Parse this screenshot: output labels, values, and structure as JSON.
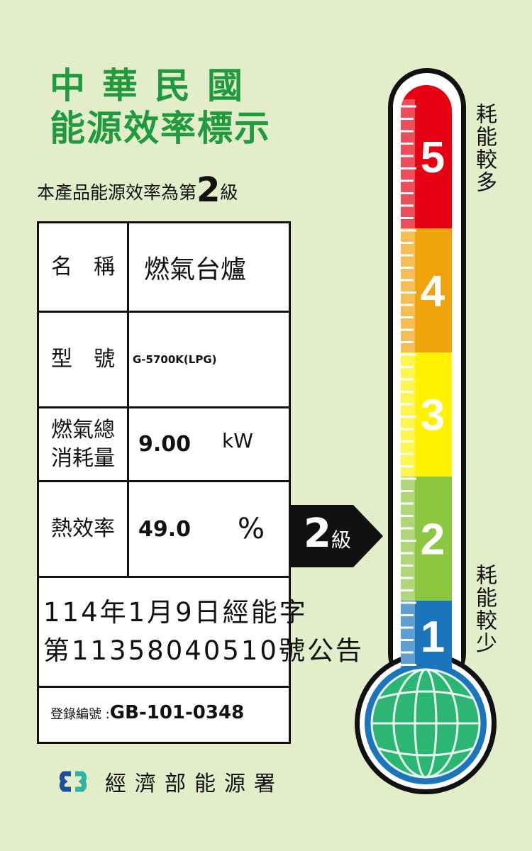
{
  "title": {
    "line1": "中華民國",
    "line2": "能源效率標示"
  },
  "subtitle": {
    "prefix": "本產品能源效率為第",
    "grade": "2",
    "suffix": "級"
  },
  "table": {
    "name_label": "名　稱",
    "name_value": "燃氣台爐",
    "model_label": "型　號",
    "model_value": "G-5700K(LPG)",
    "gas_label_1": "燃氣總",
    "gas_label_2": "消耗量",
    "gas_value": "9.00",
    "gas_unit": "kW",
    "eff_label": "熱效率",
    "eff_value": "49.0",
    "eff_unit": "%",
    "notice_line1": "114年1月9日經能字",
    "notice_line2": "第11358040510號公告",
    "reg_label": "登錄編號 :",
    "reg_value": "GB-101-0348"
  },
  "pointer": {
    "grade": "2",
    "unit": "級"
  },
  "thermometer": {
    "levels": [
      {
        "label": "5",
        "color": "#e60012"
      },
      {
        "label": "4",
        "color": "#f0a30a"
      },
      {
        "label": "3",
        "color": "#fff100"
      },
      {
        "label": "2",
        "color": "#8dc63f"
      },
      {
        "label": "1",
        "color": "#1b75bc"
      }
    ],
    "current_level": 2,
    "top_text": "耗能較多",
    "bottom_text": "耗能較少"
  },
  "footer": {
    "agency": "經濟部能源署"
  },
  "colors": {
    "background": "#e3edca",
    "title": "#1f9a3f"
  }
}
